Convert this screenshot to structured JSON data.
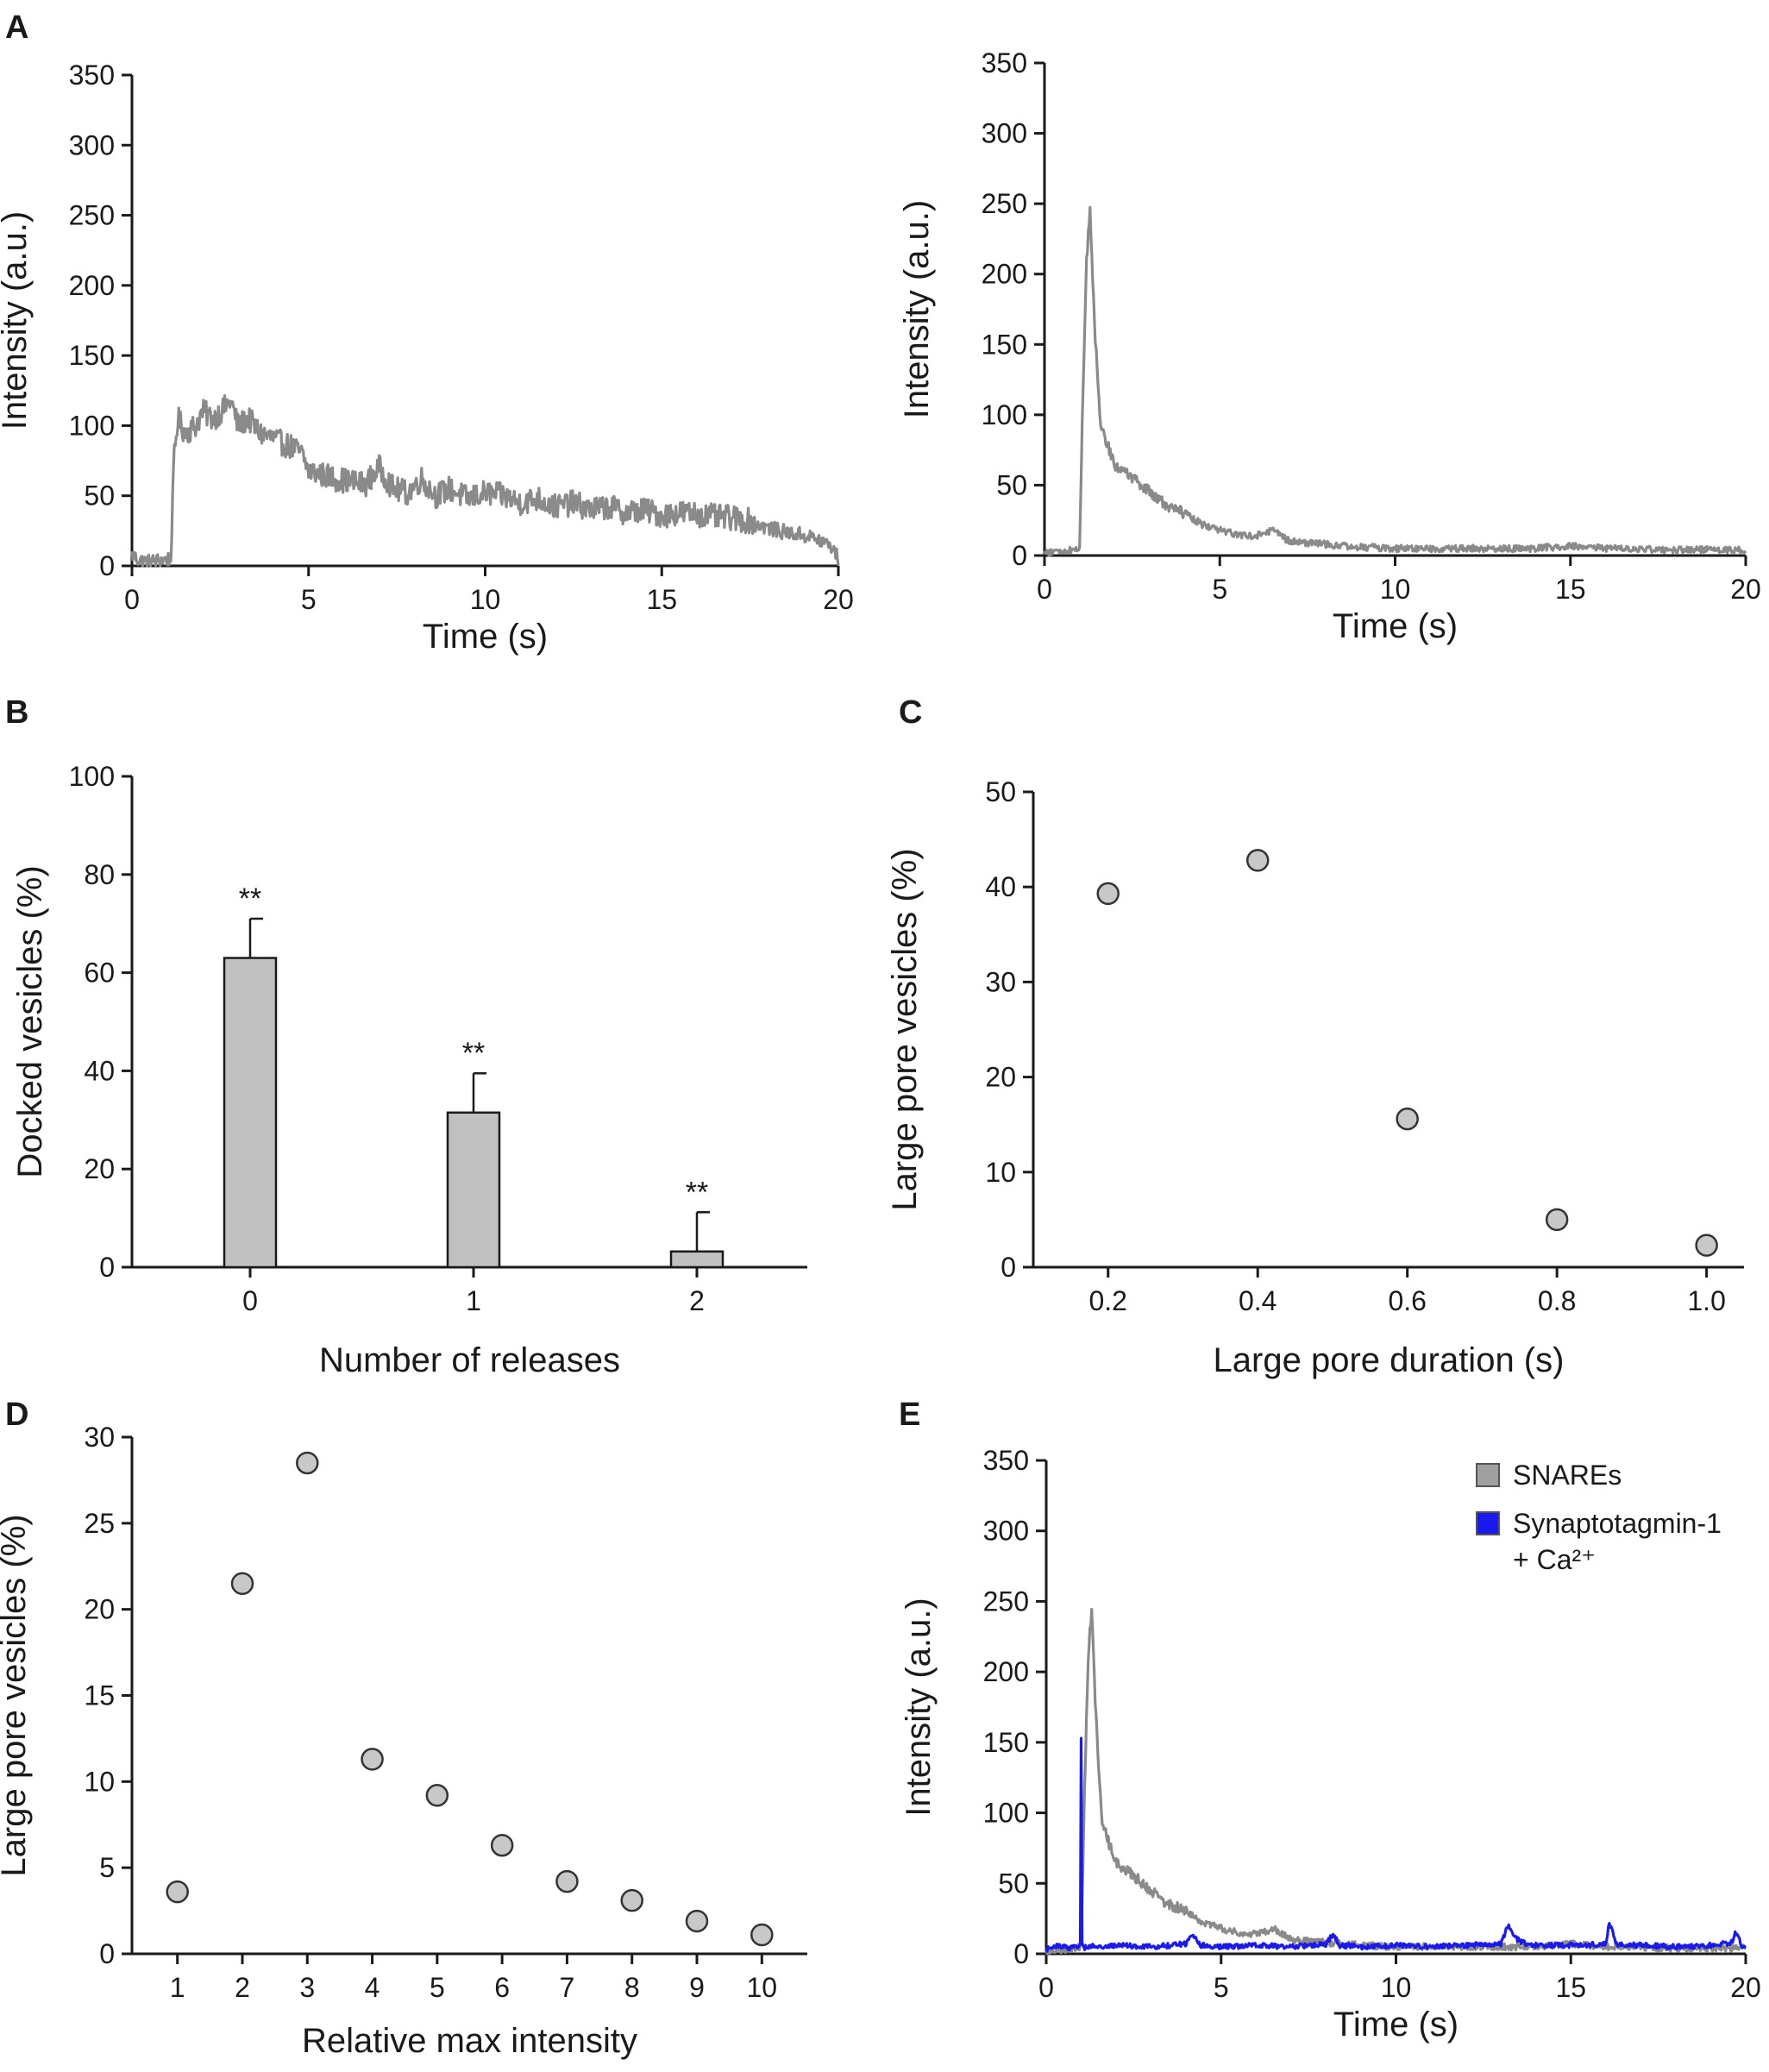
{
  "figure": {
    "panel_letters": [
      "A",
      "B",
      "C",
      "D",
      "E"
    ]
  },
  "chart_data": [
    {
      "id": "A1",
      "panel": "A",
      "type": "line",
      "xlabel": "Time (s)",
      "ylabel": "Intensity (a.u.)",
      "xlim": [
        0,
        20
      ],
      "ylim": [
        0,
        350
      ],
      "xticks": [
        0,
        5,
        10,
        15,
        20
      ],
      "yticks": [
        0,
        50,
        100,
        150,
        200,
        250,
        300,
        350
      ],
      "series": [
        {
          "name": "trace",
          "color": "#8a8a8a",
          "x": [
            0,
            0.2,
            0.5,
            0.8,
            1.1,
            1.2,
            1.3,
            1.5,
            1.8,
            2.0,
            2.3,
            2.6,
            2.8,
            3.0,
            3.3,
            3.6,
            3.9,
            4.2,
            4.5,
            4.8,
            5.0,
            5.4,
            5.8,
            6.2,
            6.6,
            7.0,
            7.4,
            7.8,
            8.2,
            8.6,
            9.0,
            9.5,
            10.0,
            10.5,
            11.0,
            11.5,
            12.0,
            12.5,
            13.0,
            13.5,
            14.0,
            14.5,
            15.0,
            15.5,
            16.0,
            16.5,
            17.0,
            17.5,
            18.0,
            18.5,
            19.0,
            19.5,
            19.8,
            20.0
          ],
          "y": [
            8,
            4,
            3,
            4,
            5,
            80,
            105,
            95,
            100,
            110,
            105,
            112,
            118,
            100,
            105,
            95,
            92,
            88,
            85,
            80,
            68,
            65,
            62,
            60,
            58,
            70,
            55,
            52,
            62,
            50,
            55,
            48,
            52,
            50,
            45,
            48,
            42,
            45,
            40,
            42,
            38,
            40,
            36,
            38,
            37,
            35,
            34,
            32,
            27,
            24,
            22,
            18,
            14,
            5
          ],
          "noise": 9
        }
      ]
    },
    {
      "id": "A2",
      "panel": "A",
      "type": "line",
      "xlabel": "Time (s)",
      "ylabel": "Intensity (a.u.)",
      "xlim": [
        0,
        20
      ],
      "ylim": [
        0,
        350
      ],
      "xticks": [
        0,
        5,
        10,
        15,
        20
      ],
      "yticks": [
        0,
        50,
        100,
        150,
        200,
        250,
        300,
        350
      ],
      "series": [
        {
          "name": "trace",
          "color": "#8a8a8a",
          "x": [
            0,
            0.5,
            1.0,
            1.1,
            1.2,
            1.3,
            1.4,
            1.5,
            1.6,
            1.7,
            2.0,
            2.5,
            3.0,
            3.5,
            4.0,
            4.5,
            5.0,
            5.5,
            6.0,
            6.5,
            7.0,
            8.0,
            9.0,
            10.0,
            12.0,
            14.0,
            15.0,
            16.0,
            18.0,
            20.0
          ],
          "y": [
            2,
            3,
            5,
            120,
            210,
            245,
            180,
            130,
            95,
            85,
            65,
            55,
            45,
            35,
            30,
            22,
            18,
            15,
            14,
            18,
            10,
            8,
            6,
            5,
            5,
            5,
            7,
            5,
            4,
            4
          ],
          "noise": 4
        }
      ]
    },
    {
      "id": "B",
      "panel": "B",
      "type": "bar",
      "xlabel": "Number of releases",
      "ylabel": "Docked vesicles (%)",
      "ylim": [
        0,
        100
      ],
      "yticks": [
        0,
        20,
        40,
        60,
        80,
        100
      ],
      "categories": [
        "0",
        "1",
        "2"
      ],
      "values": [
        63,
        31.5,
        3.2
      ],
      "errors": [
        8,
        8,
        8
      ],
      "annotations": [
        "**",
        "**",
        "**"
      ]
    },
    {
      "id": "C",
      "panel": "C",
      "type": "scatter",
      "xlabel": "Large pore duration (s)",
      "ylabel": "Large pore vesicles (%)",
      "xlim": [
        0.1,
        1.05
      ],
      "ylim": [
        0,
        50
      ],
      "xticks": [
        0.2,
        0.4,
        0.6,
        0.8,
        1.0
      ],
      "xtick_labels": [
        "0.2",
        "0.4",
        "0.6",
        "0.8",
        "1.0"
      ],
      "yticks": [
        0,
        10,
        20,
        30,
        40,
        50
      ],
      "x": [
        0.2,
        0.4,
        0.6,
        0.8,
        1.0
      ],
      "y": [
        39.3,
        42.8,
        15.6,
        5.0,
        2.3
      ]
    },
    {
      "id": "D",
      "panel": "D",
      "type": "scatter",
      "xlabel": "Relative max intensity",
      "ylabel": "Large pore vesicles (%)",
      "xlim": [
        0.3,
        10.7
      ],
      "ylim": [
        0,
        30
      ],
      "xticks": [
        1,
        2,
        3,
        4,
        5,
        6,
        7,
        8,
        9,
        10
      ],
      "yticks": [
        0,
        5,
        10,
        15,
        20,
        25,
        30
      ],
      "x": [
        1,
        2,
        3,
        4,
        5,
        6,
        7,
        8,
        9,
        10
      ],
      "y": [
        3.6,
        21.5,
        28.5,
        11.3,
        9.2,
        6.3,
        4.2,
        3.1,
        1.9,
        1.1
      ]
    },
    {
      "id": "E",
      "panel": "E",
      "type": "line",
      "xlabel": "Time (s)",
      "ylabel": "Intensity (a.u.)",
      "xlim": [
        0,
        20
      ],
      "ylim": [
        0,
        350
      ],
      "xticks": [
        0,
        5,
        10,
        15,
        20
      ],
      "yticks": [
        0,
        50,
        100,
        150,
        200,
        250,
        300,
        350
      ],
      "legend": {
        "placement": "top-right",
        "entries": [
          {
            "label": "SNAREs",
            "color": "#a0a0a0"
          },
          {
            "label": "Synaptotagmin-1",
            "label_line2": "+ Ca²⁺",
            "color": "#1a1aee"
          }
        ]
      },
      "series": [
        {
          "name": "SNAREs",
          "color": "#8a8a8a",
          "x": [
            0,
            0.5,
            1.0,
            1.1,
            1.2,
            1.3,
            1.4,
            1.5,
            1.6,
            1.7,
            2.0,
            2.5,
            3.0,
            3.5,
            4.0,
            4.5,
            5.0,
            5.5,
            6.0,
            6.5,
            7.0,
            8.0,
            9.0,
            10.0,
            12.0,
            14.0,
            15.0,
            16.0,
            18.0,
            20.0
          ],
          "y": [
            2,
            3,
            5,
            120,
            210,
            245,
            180,
            130,
            95,
            85,
            65,
            55,
            45,
            35,
            30,
            22,
            18,
            15,
            14,
            18,
            10,
            8,
            6,
            5,
            5,
            5,
            7,
            5,
            4,
            4
          ],
          "noise": 4
        },
        {
          "name": "Synaptotagmin-1 + Ca²⁺",
          "color": "#1a1aee",
          "x": [
            0,
            0.3,
            0.6,
            0.9,
            0.98,
            1.0,
            1.02,
            1.06,
            1.2,
            2,
            3,
            4,
            4.2,
            4.4,
            5,
            6,
            7,
            8,
            8.2,
            8.4,
            9,
            10,
            11,
            12,
            13,
            13.2,
            13.4,
            13.6,
            14,
            15,
            16,
            16.1,
            16.3,
            17,
            18,
            19,
            19.6,
            19.7,
            19.9,
            20
          ],
          "y": [
            3,
            6,
            4,
            5,
            8,
            155,
            10,
            4,
            5,
            6,
            5,
            7,
            14,
            6,
            5,
            6,
            5,
            7,
            14,
            6,
            5,
            6,
            5,
            6,
            7,
            20,
            12,
            8,
            6,
            6,
            7,
            22,
            7,
            6,
            5,
            6,
            8,
            15,
            6,
            4
          ],
          "noise": 3
        }
      ]
    }
  ]
}
